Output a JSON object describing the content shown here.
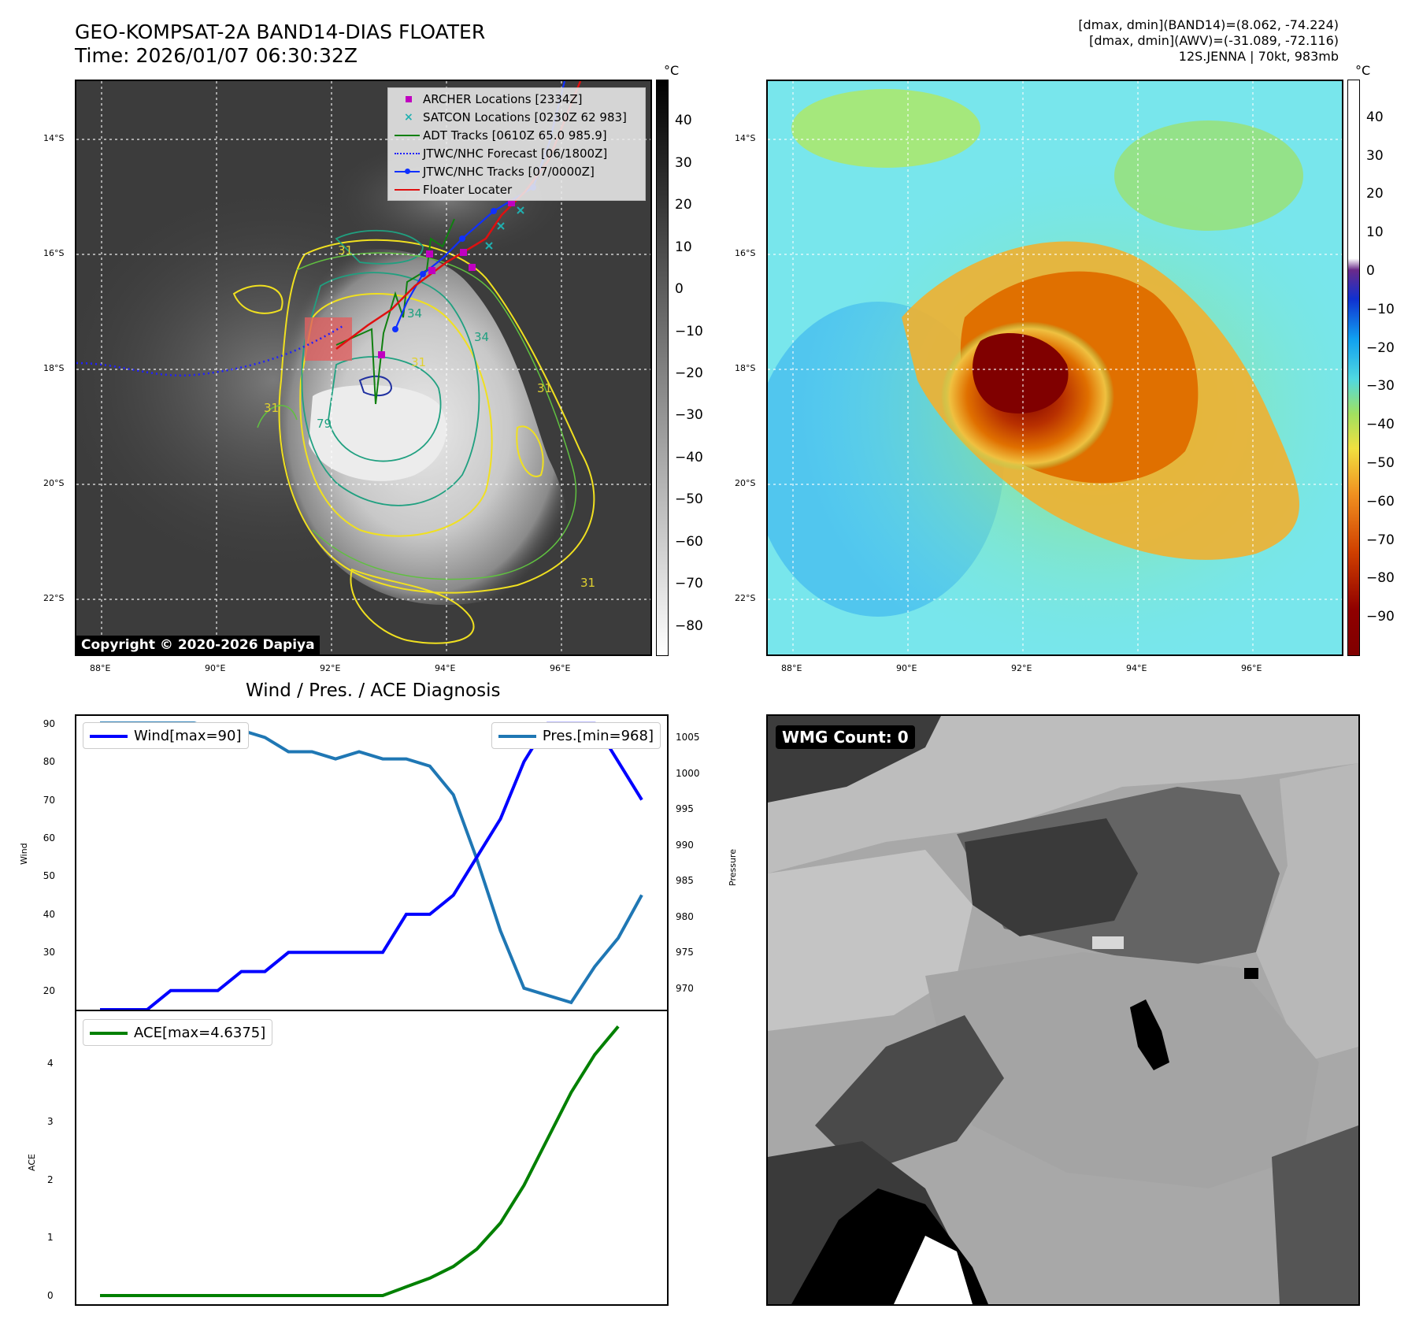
{
  "header": {
    "title_line1": "GEO-KOMPSAT-2A BAND14-DIAS FLOATER",
    "title_line2": "Time: 2026/01/07 06:30:32Z",
    "info_line1": "[dmax, dmin](BAND14)=(8.062, -74.224)",
    "info_line2": "[dmax, dmin](AWV)=(-31.089, -72.116)",
    "info_line3": "12S.JENNA | 70kt, 983mb"
  },
  "map_axes": {
    "lat_labels": [
      "14°S",
      "16°S",
      "18°S",
      "20°S",
      "22°S"
    ],
    "lon_labels": [
      "88°E",
      "90°E",
      "92°E",
      "94°E",
      "96°E"
    ]
  },
  "ir_panel": {
    "colorbar_unit": "°C",
    "colorbar_ticks": [
      "40",
      "30",
      "20",
      "10",
      "0",
      "−10",
      "−20",
      "−30",
      "−40",
      "−50",
      "−60",
      "−70",
      "−80"
    ],
    "copyright": "Copyright © 2020-2026 Dapiya",
    "legend": [
      {
        "label": "ARCHER Locations [2334Z]",
        "color": "#c000c0",
        "symbol": "square"
      },
      {
        "label": "SATCON Locations [0230Z 62 983]",
        "color": "#20b0b0",
        "symbol": "x"
      },
      {
        "label": "ADT Tracks [0610Z 65.0 985.9]",
        "color": "#108010",
        "symbol": "line"
      },
      {
        "label": "JTWC/NHC Forecast [06/1800Z]",
        "color": "#2020ff",
        "symbol": "dotted"
      },
      {
        "label": "JTWC/NHC Tracks [07/0000Z]",
        "color": "#1030ff",
        "symbol": "line-dot"
      },
      {
        "label": "Floater Locater",
        "color": "#e01010",
        "symbol": "line"
      }
    ],
    "contour_labels": [
      "31",
      "31",
      "31",
      "31",
      "34",
      "34",
      "79",
      "31"
    ]
  },
  "awv_panel": {
    "colorbar_unit": "°C",
    "colorbar_ticks": [
      "40",
      "30",
      "20",
      "10",
      "0",
      "−10",
      "−20",
      "−30",
      "−40",
      "−50",
      "−60",
      "−70",
      "−80",
      "−90"
    ]
  },
  "diagnosis": {
    "title": "Wind / Pres. / ACE Diagnosis",
    "wind_axis_label": "Wind",
    "pressure_axis_label": "Pressure",
    "ace_axis_label": "ACE",
    "wind_legend": "Wind[max=90]",
    "pres_legend": "Pres.[min=968]",
    "ace_legend": "ACE[max=4.6375]",
    "wind_ticks": [
      "90",
      "80",
      "70",
      "60",
      "50",
      "40",
      "30",
      "20"
    ],
    "pres_ticks": [
      "1005",
      "1000",
      "995",
      "990",
      "985",
      "980",
      "975",
      "970"
    ],
    "ace_ticks": [
      "4",
      "3",
      "2",
      "1",
      "0"
    ]
  },
  "wmg_panel": {
    "label": "WMG Count: 0"
  },
  "chart_data": [
    {
      "type": "line",
      "title": "Wind / Pres. / ACE Diagnosis",
      "ylabel": "Wind",
      "y2label": "Pressure",
      "ylim": [
        15,
        92
      ],
      "y2lim": [
        967,
        1008
      ],
      "series": [
        {
          "name": "Wind[max=90]",
          "color": "#0000ff",
          "values": [
            15,
            15,
            15,
            20,
            20,
            20,
            25,
            25,
            30,
            30,
            30,
            30,
            30,
            40,
            40,
            45,
            55,
            65,
            80,
            90,
            90,
            90,
            80,
            70
          ]
        },
        {
          "name": "Pres.[min=968]",
          "color": "#1f77b4",
          "axis": "right",
          "values": [
            1007,
            1007,
            1007,
            1007,
            1007,
            1006,
            1006,
            1005,
            1003,
            1003,
            1002,
            1003,
            1002,
            1002,
            1001,
            997,
            988,
            978,
            970,
            969,
            968,
            973,
            977,
            983
          ]
        }
      ]
    },
    {
      "type": "line",
      "ylabel": "ACE",
      "ylim": [
        -0.15,
        4.9
      ],
      "series": [
        {
          "name": "ACE[max=4.6375]",
          "color": "#008000",
          "values": [
            0,
            0,
            0,
            0,
            0,
            0,
            0,
            0,
            0,
            0,
            0,
            0,
            0,
            0.15,
            0.3,
            0.5,
            0.8,
            1.25,
            1.9,
            2.7,
            3.5,
            4.15,
            4.6375
          ]
        }
      ]
    }
  ]
}
